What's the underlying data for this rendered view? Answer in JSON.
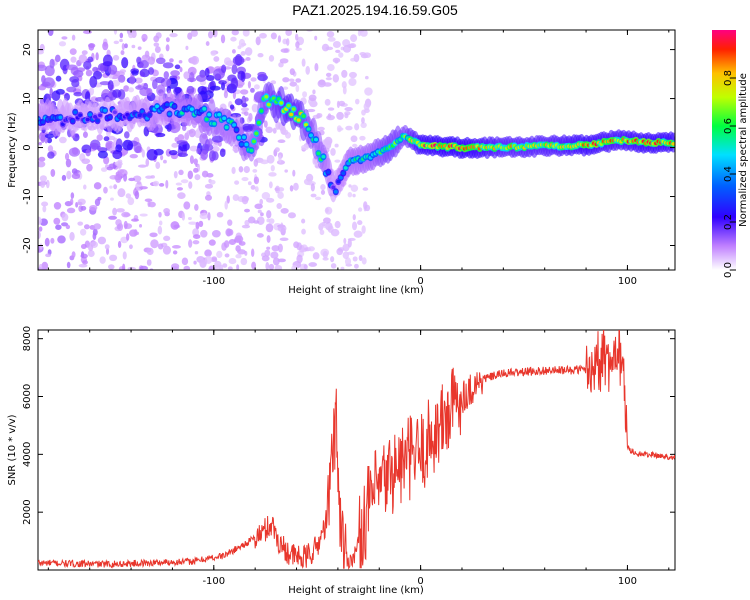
{
  "title": "PAZ1.2025.194.16.59.G05",
  "colors": {
    "signal": "#e8362c",
    "frame": "#000000"
  },
  "chart_data": [
    {
      "type": "heatmap",
      "xlabel": "Height of straight line (km)",
      "ylabel": "Frequency (Hz)",
      "xlim": [
        -185,
        123
      ],
      "ylim": [
        -25,
        24
      ],
      "x_ticks": [
        "-100",
        "0",
        "100"
      ],
      "y_ticks": [
        "-20",
        "-10",
        "0",
        "10",
        "20"
      ],
      "colorbar": {
        "label": "Normalized spectral amplitude",
        "range": [
          0,
          1
        ],
        "ticks": [
          "0.0",
          "0.2",
          "0.4",
          "0.6",
          "0.8"
        ],
        "colormap": "rainbow (white-purple-blue-cyan-green-yellow-orange-red)"
      },
      "ridge": [
        {
          "x": -180,
          "f": 6,
          "a": 0.35
        },
        {
          "x": -165,
          "f": 6,
          "a": 0.28
        },
        {
          "x": -145,
          "f": 7,
          "a": 0.3
        },
        {
          "x": -130,
          "f": 7,
          "a": 0.35
        },
        {
          "x": -120,
          "f": 8,
          "a": 0.4
        },
        {
          "x": -110,
          "f": 7.5,
          "a": 0.45
        },
        {
          "x": -100,
          "f": 6,
          "a": 0.5
        },
        {
          "x": -90,
          "f": 4,
          "a": 0.45
        },
        {
          "x": -82,
          "f": -1,
          "a": 0.5
        },
        {
          "x": -75,
          "f": 10,
          "a": 0.6
        },
        {
          "x": -65,
          "f": 8,
          "a": 0.75
        },
        {
          "x": -58,
          "f": 6,
          "a": 0.7
        },
        {
          "x": -52,
          "f": 3,
          "a": 0.55
        },
        {
          "x": -46,
          "f": -4,
          "a": 0.5
        },
        {
          "x": -42,
          "f": -9,
          "a": 0.3
        },
        {
          "x": -35,
          "f": -3,
          "a": 0.45
        },
        {
          "x": -25,
          "f": -2,
          "a": 0.5
        },
        {
          "x": -15,
          "f": 0,
          "a": 0.65
        },
        {
          "x": -8,
          "f": 2.5,
          "a": 0.6
        },
        {
          "x": 0,
          "f": 0.5,
          "a": 0.85
        },
        {
          "x": 20,
          "f": 0,
          "a": 0.9
        },
        {
          "x": 40,
          "f": 0,
          "a": 0.75
        },
        {
          "x": 60,
          "f": 0.3,
          "a": 0.75
        },
        {
          "x": 80,
          "f": 0.5,
          "a": 0.85
        },
        {
          "x": 95,
          "f": 1.5,
          "a": 0.8
        },
        {
          "x": 110,
          "f": 1,
          "a": 0.85
        },
        {
          "x": 123,
          "f": 1,
          "a": 0.85
        }
      ]
    },
    {
      "type": "line",
      "xlabel": "Height of straight line (km)",
      "ylabel": "SNR (10 * v/v)",
      "xlim": [
        -185,
        123
      ],
      "ylim": [
        0,
        8300
      ],
      "x_ticks": [
        "-100",
        "0",
        "100"
      ],
      "y_ticks": [
        "2000",
        "4000",
        "6000",
        "8000"
      ],
      "series": [
        {
          "x": [
            -185,
            -170,
            -150,
            -130,
            -110,
            -95,
            -85,
            -78,
            -72,
            -68,
            -62,
            -56,
            -50,
            -45,
            -41,
            -39,
            -37,
            -35,
            -32,
            -28,
            -24,
            -20,
            -15,
            -10,
            -5,
            0,
            5,
            10,
            15,
            20,
            25,
            30,
            40,
            50,
            60,
            70,
            80,
            85,
            90,
            95,
            98,
            100,
            105,
            110,
            115,
            123
          ],
          "y": [
            250,
            220,
            200,
            250,
            300,
            500,
            900,
            1200,
            1600,
            900,
            500,
            400,
            800,
            1800,
            5400,
            2000,
            600,
            300,
            500,
            1500,
            2500,
            2800,
            3300,
            3600,
            3900,
            4000,
            4600,
            5000,
            5600,
            6000,
            6300,
            6600,
            6800,
            6850,
            6900,
            6900,
            6950,
            7100,
            7000,
            7200,
            7000,
            4200,
            4000,
            4000,
            3950,
            3900
          ]
        }
      ]
    }
  ]
}
